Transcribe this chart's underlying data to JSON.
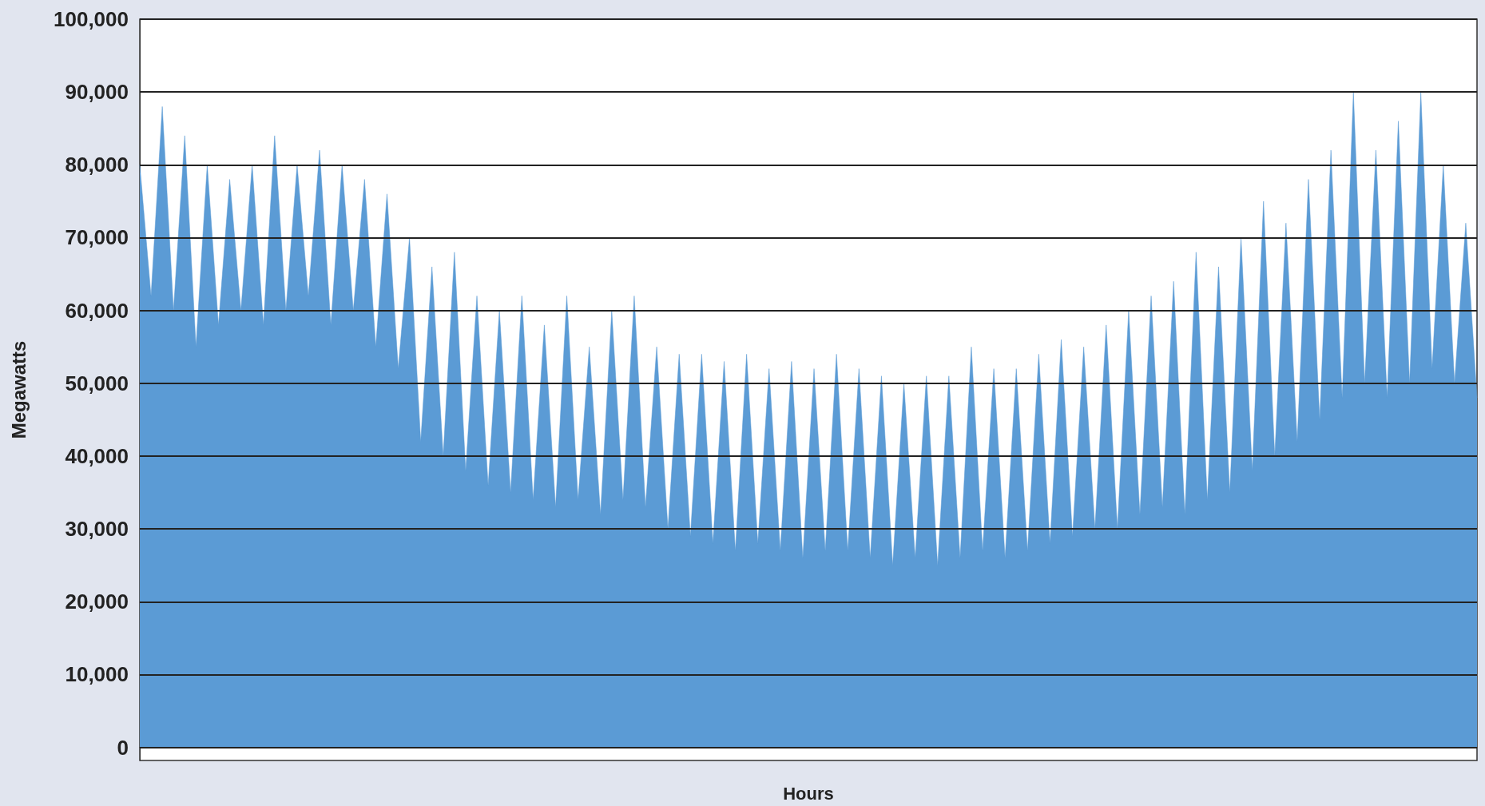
{
  "chart_data": {
    "type": "area",
    "xlabel": "Hours",
    "ylabel": "Megawatts",
    "color": "#5b9bd5",
    "grid": "y",
    "tick_labels": "y",
    "ylim": [
      -1800,
      100000
    ],
    "yticks": [
      {
        "value": 0,
        "label": "0"
      },
      {
        "value": 10000,
        "label": "10,000"
      },
      {
        "value": 20000,
        "label": "20,000"
      },
      {
        "value": 30000,
        "label": "30,000"
      },
      {
        "value": 40000,
        "label": "40,000"
      },
      {
        "value": 50000,
        "label": "50,000"
      },
      {
        "value": 60000,
        "label": "60,000"
      },
      {
        "value": 70000,
        "label": "70,000"
      },
      {
        "value": 80000,
        "label": "80,000"
      },
      {
        "value": 90000,
        "label": "90,000"
      },
      {
        "value": 100000,
        "label": "100,000"
      }
    ],
    "categories": [
      null,
      null,
      null,
      null,
      null,
      null,
      null,
      null,
      null,
      null,
      null,
      null,
      null,
      null,
      null,
      null,
      null,
      null,
      null,
      null,
      null,
      null,
      null,
      null,
      null,
      null,
      null,
      null,
      null,
      null,
      null,
      null,
      null,
      null,
      null,
      null,
      null,
      null,
      null,
      null,
      null,
      null,
      null,
      null,
      null,
      null,
      null,
      null,
      null,
      null,
      null,
      null,
      null,
      null,
      null,
      null,
      null,
      null,
      null,
      null,
      null,
      null,
      null,
      null,
      null,
      null,
      null,
      null,
      null,
      null,
      null,
      null,
      null,
      null,
      null,
      null,
      null,
      null,
      null,
      null,
      null,
      null,
      null,
      null,
      null,
      null,
      null,
      null,
      null,
      null,
      null,
      null,
      null,
      null,
      null,
      null,
      null,
      null,
      null,
      null,
      null,
      null,
      null,
      null,
      null,
      null,
      null,
      null,
      null,
      null,
      null,
      null,
      null,
      null,
      null,
      null,
      null,
      null,
      null,
      null
    ],
    "values": [
      80000,
      62000,
      88000,
      60000,
      84000,
      55000,
      80000,
      58000,
      78000,
      60000,
      80000,
      58000,
      84000,
      60000,
      80000,
      62000,
      82000,
      58000,
      80000,
      60000,
      78000,
      55000,
      76000,
      52000,
      70000,
      42000,
      66000,
      40000,
      68000,
      38000,
      62000,
      36000,
      60000,
      35000,
      62000,
      34000,
      58000,
      33000,
      62000,
      34000,
      55000,
      32000,
      60000,
      34000,
      62000,
      33000,
      55000,
      30000,
      54000,
      29000,
      54000,
      28000,
      53000,
      27000,
      54000,
      28000,
      52000,
      27000,
      53000,
      26000,
      52000,
      27000,
      54000,
      27000,
      52000,
      26000,
      51000,
      25000,
      50000,
      26000,
      51000,
      25000,
      51000,
      26000,
      55000,
      27000,
      52000,
      26000,
      52000,
      27000,
      54000,
      28000,
      56000,
      29000,
      55000,
      30000,
      58000,
      30000,
      60000,
      32000,
      62000,
      33000,
      64000,
      32000,
      68000,
      34000,
      66000,
      35000,
      70000,
      38000,
      75000,
      40000,
      72000,
      42000,
      78000,
      45000,
      82000,
      48000,
      90000,
      50000,
      82000,
      48000,
      86000,
      50000,
      90000,
      52000,
      80000,
      50000,
      72000,
      48000
    ]
  }
}
